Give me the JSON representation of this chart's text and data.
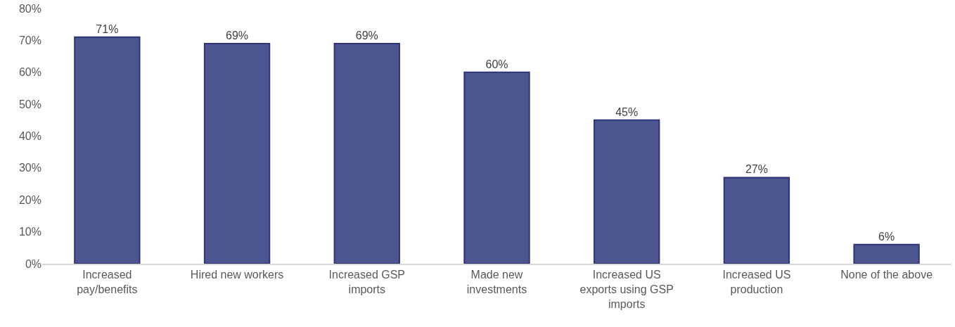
{
  "chart_data": {
    "type": "bar",
    "categories": [
      "Increased pay/benefits",
      "Hired new workers",
      "Increased GSP imports",
      "Made new investments",
      "Increased US exports using GSP imports",
      "Increased US production",
      "None of the above"
    ],
    "values": [
      71,
      69,
      69,
      60,
      45,
      27,
      6
    ],
    "value_labels": [
      "71%",
      "69%",
      "69%",
      "60%",
      "45%",
      "27%",
      "6%"
    ],
    "color": "#4d5591",
    "ylim": [
      0,
      80
    ],
    "yticks": [
      {
        "value": 0,
        "label": "0%"
      },
      {
        "value": 10,
        "label": "10%"
      },
      {
        "value": 20,
        "label": "20%"
      },
      {
        "value": 30,
        "label": "30%"
      },
      {
        "value": 40,
        "label": "40%"
      },
      {
        "value": 50,
        "label": "50%"
      },
      {
        "value": 60,
        "label": "60%"
      },
      {
        "value": 70,
        "label": "70%"
      },
      {
        "value": 80,
        "label": "80%"
      }
    ],
    "grid": false,
    "legend": false
  }
}
